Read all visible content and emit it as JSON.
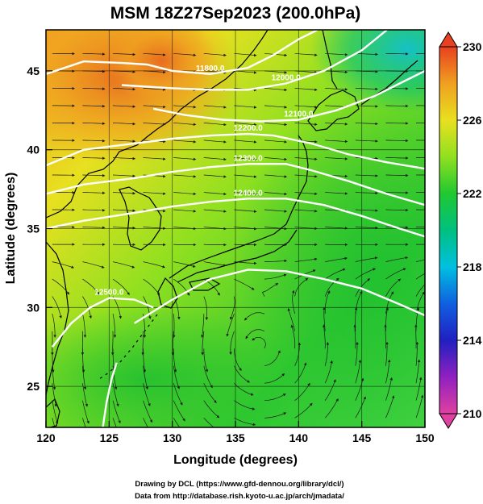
{
  "title": "MSM 18Z27Sep2023 (200.0hPa)",
  "credit_lines": [
    "Drawing by DCL (https://www.gfd-dennou.org/library/dcl/)",
    "Data from http://database.rish.kyoto-u.ac.jp/arch/jmadata/"
  ],
  "colors": {
    "land_outline": "#000000",
    "contour": "#ffffff",
    "streamline": "#1a1a1a"
  },
  "chart_data": {
    "type": "heatmap",
    "xlabel": "Longitude (degrees)",
    "ylabel": "Latitude  (degrees)",
    "xlim": [
      120,
      150
    ],
    "ylim": [
      22.4,
      47.6
    ],
    "x_ticks": [
      "120",
      "125",
      "130",
      "135",
      "140",
      "145",
      "150"
    ],
    "y_ticks": [
      "25",
      "30",
      "35",
      "40",
      "45"
    ],
    "grid": true,
    "colorbar": {
      "range": [
        210,
        230
      ],
      "ticks": [
        "210",
        "214",
        "218",
        "222",
        "226",
        "230"
      ],
      "stops": [
        {
          "v": 210,
          "c": "#e040a0"
        },
        {
          "v": 212,
          "c": "#9020c0"
        },
        {
          "v": 214,
          "c": "#2020c0"
        },
        {
          "v": 216,
          "c": "#1060e0"
        },
        {
          "v": 218,
          "c": "#00c0e0"
        },
        {
          "v": 220,
          "c": "#00c080"
        },
        {
          "v": 222,
          "c": "#20c830"
        },
        {
          "v": 224,
          "c": "#90e020"
        },
        {
          "v": 226,
          "c": "#e8e020"
        },
        {
          "v": 228,
          "c": "#f0a020"
        },
        {
          "v": 230,
          "c": "#e84020"
        }
      ]
    },
    "contours": [
      {
        "label": "11800.0",
        "points": [
          [
            120.0,
            44.8
          ],
          [
            123,
            45.6
          ],
          [
            126,
            45.5
          ],
          [
            128,
            45.4
          ],
          [
            130,
            45.0
          ],
          [
            133,
            44.8
          ],
          [
            136,
            45.2
          ],
          [
            138,
            46.0
          ],
          [
            140,
            47.0
          ],
          [
            141.5,
            47.6
          ]
        ]
      },
      {
        "label": "12000.0",
        "points": [
          [
            126,
            44.1
          ],
          [
            130,
            43.9
          ],
          [
            133,
            43.8
          ],
          [
            136,
            43.8
          ],
          [
            139,
            44.2
          ],
          [
            142,
            45.0
          ],
          [
            145,
            46.3
          ],
          [
            147,
            47.6
          ]
        ]
      },
      {
        "label": "12100.0",
        "points": [
          [
            128.5,
            42.6
          ],
          [
            131,
            42.2
          ],
          [
            134,
            41.9
          ],
          [
            137,
            41.8
          ],
          [
            140,
            41.9
          ],
          [
            143,
            42.5
          ],
          [
            146,
            43.4
          ],
          [
            148,
            44.2
          ],
          [
            150,
            45.0
          ]
        ]
      },
      {
        "label": "12200.0",
        "points": [
          [
            120,
            39.0
          ],
          [
            123,
            40.0
          ],
          [
            127,
            40.4
          ],
          [
            130,
            40.7
          ],
          [
            133,
            40.9
          ],
          [
            136,
            41.0
          ],
          [
            138,
            40.9
          ],
          [
            141,
            40.4
          ],
          [
            144,
            39.7
          ],
          [
            147,
            39.2
          ],
          [
            150,
            38.8
          ]
        ]
      },
      {
        "label": "12300.0",
        "points": [
          [
            120,
            37.2
          ],
          [
            123,
            37.8
          ],
          [
            127,
            38.2
          ],
          [
            130,
            38.6
          ],
          [
            133,
            38.9
          ],
          [
            136,
            39.1
          ],
          [
            139,
            39.1
          ],
          [
            141,
            38.7
          ],
          [
            144,
            38.0
          ],
          [
            147,
            37.2
          ],
          [
            150,
            36.5
          ]
        ]
      },
      {
        "label": "12400.0",
        "points": [
          [
            120,
            35.0
          ],
          [
            123,
            35.5
          ],
          [
            127,
            36.0
          ],
          [
            130,
            36.4
          ],
          [
            133,
            36.7
          ],
          [
            136,
            36.9
          ],
          [
            139,
            36.9
          ],
          [
            142,
            36.5
          ],
          [
            145,
            35.8
          ],
          [
            148,
            35.0
          ],
          [
            150,
            34.5
          ]
        ]
      },
      {
        "label": "",
        "points": [
          [
            127,
            29.0
          ],
          [
            130,
            30.5
          ],
          [
            133,
            31.8
          ],
          [
            136,
            32.4
          ],
          [
            139,
            32.3
          ],
          [
            142,
            31.8
          ],
          [
            145,
            31.2
          ],
          [
            148,
            30.2
          ],
          [
            150,
            29.5
          ]
        ]
      },
      {
        "label": "12500.0",
        "points": [
          [
            120.5,
            27.5
          ],
          [
            122,
            29.0
          ],
          [
            123.5,
            30.0
          ],
          [
            125,
            30.6
          ],
          [
            127,
            30.5
          ],
          [
            128.5,
            30.0
          ]
        ]
      },
      {
        "label": "",
        "points": [
          [
            124.5,
            22.4
          ],
          [
            124.8,
            24.0
          ],
          [
            125.2,
            25.5
          ],
          [
            125.6,
            26.5
          ]
        ]
      }
    ]
  }
}
